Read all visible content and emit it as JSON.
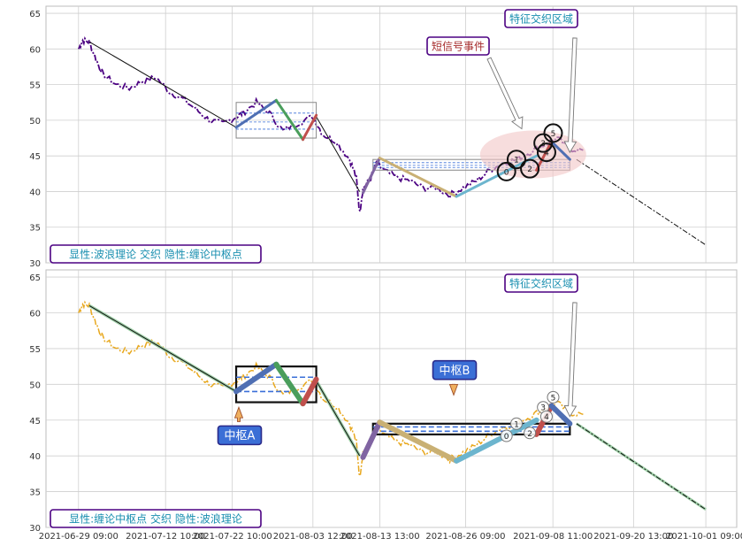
{
  "colors": {
    "grid": "#cfcfcf",
    "price_top": "#4b0082",
    "price_bottom": "#e8a81e",
    "wave1": "#4f6fb3",
    "wave2": "#4a9e5c",
    "wave3": "#c0504d",
    "wave_mid1": "#8064a2",
    "wave_mid2": "#c9b074",
    "wave_mid3": "#6cb5ce",
    "trend_fill": "#9fd0a8",
    "label_border": "#4b0082",
    "label_text_top": "#1a8fb0",
    "label_text_red": "#a52a2a",
    "zhongshu_box": "#3a6fd8",
    "ellipse": "#f2c6c6"
  },
  "chart_data": [
    {
      "type": "line",
      "panel": "top",
      "ylim": [
        30,
        66
      ],
      "yticks": [
        30,
        35,
        40,
        45,
        50,
        55,
        60,
        65
      ],
      "grid": true,
      "legend_text": "显性:波浪理论 交织 隐性:缠论中枢点",
      "annotations": [
        {
          "text": "短信号事件",
          "target_x": "2021-09-08 11:00",
          "target_y": 48.5
        },
        {
          "text": "特征交织区域",
          "target_x": "2021-09-11 00:00",
          "target_y": 45.5
        }
      ],
      "price_series": {
        "name": "",
        "x": [
          "2021-06-29 09:00",
          "2021-06-30 00:00",
          "2021-07-01 00:00",
          "2021-07-02 00:00",
          "2021-07-03 00:00",
          "2021-07-05 00:00",
          "2021-07-07 00:00",
          "2021-07-09 00:00",
          "2021-07-11 00:00",
          "2021-07-13 00:00",
          "2021-07-15 00:00",
          "2021-07-17 00:00",
          "2021-07-19 00:00",
          "2021-07-21 00:00",
          "2021-07-23 00:00",
          "2021-07-24 00:00",
          "2021-07-26 00:00",
          "2021-07-28 00:00",
          "2021-07-30 00:00",
          "2021-08-01 00:00",
          "2021-08-03 12:00",
          "2021-08-05 00:00",
          "2021-08-07 00:00",
          "2021-08-09 00:00",
          "2021-08-10 00:00",
          "2021-08-10 12:00",
          "2021-08-11 00:00",
          "2021-08-12 00:00",
          "2021-08-13 00:00",
          "2021-08-14 00:00",
          "2021-08-16 00:00",
          "2021-08-18 00:00",
          "2021-08-20 00:00",
          "2021-08-22 00:00",
          "2021-08-24 00:00",
          "2021-08-26 00:00",
          "2021-08-28 00:00",
          "2021-08-30 00:00",
          "2021-09-01 00:00",
          "2021-09-03 00:00",
          "2021-09-05 00:00",
          "2021-09-07 00:00",
          "2021-09-09 00:00",
          "2021-09-11 00:00",
          "2021-09-13 00:00"
        ],
        "y": [
          60.0,
          61.2,
          61.0,
          58.5,
          56.5,
          55.0,
          54.5,
          55.5,
          56.0,
          54.0,
          53.0,
          51.5,
          50.0,
          49.5,
          50.5,
          51.0,
          52.5,
          51.0,
          48.5,
          49.5,
          50.5,
          48.0,
          47.0,
          44.5,
          42.0,
          37.0,
          40.5,
          41.5,
          44.0,
          43.0,
          42.0,
          41.5,
          40.5,
          40.5,
          39.5,
          40.5,
          41.5,
          43.0,
          44.0,
          44.5,
          45.5,
          46.5,
          47.5,
          46.0,
          45.8
        ]
      },
      "trend_line": {
        "x": [
          "2021-07-01 00:00",
          "2021-07-23 00:00"
        ],
        "y": [
          61.0,
          49.0
        ]
      },
      "trend_line2": {
        "x": [
          "2021-08-04 00:00",
          "2021-08-10 12:00"
        ],
        "y": [
          50.5,
          40.0
        ]
      },
      "projection": {
        "x": [
          "2021-09-12 00:00",
          "2021-10-01 09:00"
        ],
        "y": [
          44.5,
          32.5
        ]
      },
      "zhongshu": [
        {
          "x0": "2021-07-23 00:00",
          "x1": "2021-08-04 00:00",
          "y0": 47.5,
          "y1": 52.5
        },
        {
          "x0": "2021-08-12 12:00",
          "x1": "2021-09-11 00:00",
          "y0": 43.0,
          "y1": 44.5
        }
      ],
      "waves": [
        {
          "x": [
            "2021-07-23 00:00",
            "2021-07-29 00:00"
          ],
          "y": [
            49.0,
            52.8
          ],
          "color_key": "wave1"
        },
        {
          "x": [
            "2021-07-29 00:00",
            "2021-08-02 00:00"
          ],
          "y": [
            52.8,
            47.3
          ],
          "color_key": "wave2"
        },
        {
          "x": [
            "2021-08-02 00:00",
            "2021-08-04 00:00"
          ],
          "y": [
            47.3,
            50.7
          ],
          "color_key": "wave3"
        },
        {
          "x": [
            "2021-08-11 00:00",
            "2021-08-13 12:00"
          ],
          "y": [
            39.8,
            44.7
          ],
          "color_key": "wave_mid1"
        },
        {
          "x": [
            "2021-08-13 12:00",
            "2021-08-25 00:00"
          ],
          "y": [
            44.7,
            39.3
          ],
          "color_key": "wave_mid2"
        },
        {
          "x": [
            "2021-08-25 00:00",
            "2021-09-06 00:00"
          ],
          "y": [
            39.3,
            45.0
          ],
          "color_key": "wave_mid3"
        },
        {
          "x": [
            "2021-09-06 00:00",
            "2021-09-08 06:00"
          ],
          "y": [
            43.0,
            47.0
          ],
          "color_key": "wave3"
        },
        {
          "x": [
            "2021-09-08 06:00",
            "2021-09-11 00:00"
          ],
          "y": [
            47.0,
            44.5
          ],
          "color_key": "wave1"
        }
      ],
      "points": [
        {
          "label": "0",
          "x": "2021-09-01 12:00",
          "y": 42.8
        },
        {
          "label": "1",
          "x": "2021-09-03 00:00",
          "y": 44.5
        },
        {
          "label": "2",
          "x": "2021-09-05 00:00",
          "y": 43.2
        },
        {
          "label": "3",
          "x": "2021-09-07 00:00",
          "y": 46.8
        },
        {
          "label": "4",
          "x": "2021-09-07 12:00",
          "y": 45.5
        },
        {
          "label": "5",
          "x": "2021-09-08 12:00",
          "y": 48.2
        }
      ]
    },
    {
      "type": "line",
      "panel": "bottom",
      "ylim": [
        30,
        66
      ],
      "yticks": [
        30,
        35,
        40,
        45,
        50,
        55,
        60,
        65
      ],
      "grid": true,
      "legend_text": "显性:缠论中枢点 交织 隐性:波浪理论",
      "annotations": [
        {
          "text": "特征交织区域",
          "target_x": "2021-09-11 00:00",
          "target_y": 45.5
        },
        {
          "text": "中枢A",
          "target_x": "2021-07-29 00:00",
          "target_y": 47.0
        },
        {
          "text": "中枢B",
          "target_x": "2021-08-29 00:00",
          "target_y": 48.5
        }
      ],
      "zhongshu_labels": [
        "中枢A",
        "中枢B"
      ],
      "points": [
        {
          "label": "0",
          "x": "2021-09-01 12:00",
          "y": 42.8
        },
        {
          "label": "1",
          "x": "2021-09-03 00:00",
          "y": 44.5
        },
        {
          "label": "2",
          "x": "2021-09-05 00:00",
          "y": 43.2
        },
        {
          "label": "3",
          "x": "2021-09-07 00:00",
          "y": 46.8
        },
        {
          "label": "4",
          "x": "2021-09-07 12:00",
          "y": 45.5
        },
        {
          "label": "5",
          "x": "2021-09-08 12:00",
          "y": 48.2
        }
      ]
    }
  ],
  "x_axis": {
    "ticks": [
      "2021-06-29 09:00",
      "2021-07-12 10:00",
      "2021-07-22 10:00",
      "2021-08-03 12:00",
      "2021-08-13 13:00",
      "2021-08-26 09:00",
      "2021-09-08 11:00",
      "2021-09-20 13:00",
      "2021-10-01 09:00"
    ]
  }
}
